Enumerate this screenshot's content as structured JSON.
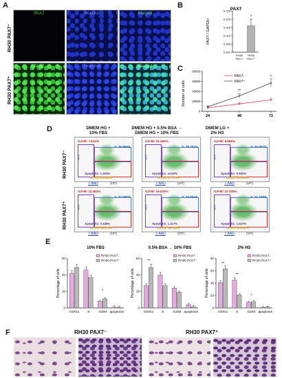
{
  "panels": {
    "a": "A",
    "b": "B",
    "c": "C",
    "d": "D",
    "e": "E",
    "f": "F"
  },
  "panel_a": {
    "col_labels": [
      "PAX7",
      "Hoechst",
      "Merged"
    ],
    "row_labels": [
      "RH30 PAX7⁻",
      "RH30 PAX7⁺"
    ],
    "colors": {
      "pax7": "#39c23a",
      "hoechst": "#1c2bb0",
      "background": "#050510"
    }
  },
  "panel_b": {
    "chart_data": {
      "type": "bar",
      "title": "PAX7",
      "ylabel": "PAX7 / GAPDH",
      "categories": [
        "RH30 PAX7-",
        "RH30 PAX7⁺"
      ],
      "values": [
        0.0,
        0.016
      ],
      "errors": [
        0.0,
        0.004
      ],
      "ylim": [
        0,
        0.025
      ],
      "yticks": [
        "0.000",
        "0.005",
        "0.010",
        "0.015",
        "0.020",
        "0.025"
      ],
      "annotations": [
        "*"
      ]
    }
  },
  "panel_c": {
    "chart_data": {
      "type": "line",
      "ylabel": "Number of cells",
      "x": [
        24,
        48,
        72
      ],
      "xticks": [
        "24",
        "48",
        "72"
      ],
      "yticks": [
        "0",
        "20000",
        "40000",
        "60000",
        "80000"
      ],
      "ylim": [
        0,
        80000
      ],
      "series": [
        {
          "name": "PAX7-",
          "values": [
            7000,
            15000,
            23000
          ],
          "errors": [
            1500,
            2500,
            3000
          ],
          "color": "#e8506a"
        },
        {
          "name": "PAX7⁺",
          "values": [
            9000,
            31000,
            57000
          ],
          "errors": [
            2000,
            4000,
            8000
          ],
          "color": "#555555"
        }
      ],
      "annotations": [
        "**",
        "*"
      ]
    }
  },
  "panel_d": {
    "col_labels": [
      "DMEM HG +\n10% FBS",
      "DMEM HG + 0.5% BSA →\nDMEM HG + 10% FBS",
      "DMEM LG +\n2% HS"
    ],
    "row_labels": [
      "RH30 PAX7⁻",
      "RH30 PAX7⁺"
    ],
    "x_axis": "7-AAD",
    "x_unit": "(10⁵)",
    "y_axis": "APC",
    "plots": [
      {
        "g2m": "G2+M: 7.814%",
        "s": "S: 46.665%",
        "apo": "Apoptotic: 1.163%",
        "g0g1": "G0/G1: 41.883%"
      },
      {
        "g2m": "G2+M: 24.182%",
        "s": "S: 39.700%",
        "apo": "Apoptotic: 4.022%",
        "g0g1": "G0/G1: 27.174%"
      },
      {
        "g2m": "G2+M: 8.966%",
        "s": "S: 45.007%",
        "apo": "Apoptotic: 0.902%",
        "g0g1": "G0/G1: 40.969%"
      },
      {
        "g2m": "G2+M: 11.463%",
        "s": "S: 37.090%",
        "apo": "Apoptotic: 0.436%",
        "g0g1": "G0/G1: 49.879%"
      },
      {
        "g2m": "G2+M: 19.044%",
        "s": "S: 26.954%",
        "apo": "Apoptotic: 1.417%",
        "g0g1": "G0/G1: 49.783%"
      },
      {
        "g2m": "G2+M: 10.335%",
        "s": "S: 21.338%",
        "apo": "Apoptotic: 1.537%",
        "g0g1": "G0/G1: 62.852%"
      }
    ]
  },
  "panel_e": {
    "legend": [
      "RH30 PAX7-",
      "RH30 PAX7⁺"
    ],
    "colors": {
      "neg": "#e6a8e0",
      "pos": "#b8b8b8"
    },
    "chart_data": [
      {
        "type": "bar",
        "title": "10% FBS",
        "ylabel": "Percentage of cells",
        "categories": [
          "G0/G1",
          "S",
          "G2/M",
          "apoptosis"
        ],
        "series": [
          {
            "name": "RH30 PAX7-",
            "values": [
              42,
              46,
              8,
              1
            ]
          },
          {
            "name": "RH30 PAX7⁺",
            "values": [
              49,
              37,
              11,
              0.5
            ]
          }
        ],
        "yticks": [
          "0",
          "20",
          "40",
          "60"
        ],
        "ylim": [
          0,
          60
        ],
        "annotations": [
          "*"
        ]
      },
      {
        "type": "bar",
        "title": "0.5% BSA → 10% FBS",
        "ylabel": "Percentage of cells",
        "categories": [
          "G0/G1",
          "S",
          "G2/M",
          "apoptosis"
        ],
        "series": [
          {
            "name": "RH30 PAX7-",
            "values": [
              27,
              40,
              24,
              4
            ]
          },
          {
            "name": "RH30 PAX7⁺",
            "values": [
              49,
              27,
              19,
              1.5
            ]
          }
        ],
        "yticks": [
          "0",
          "20",
          "40",
          "60"
        ],
        "ylim": [
          0,
          60
        ],
        "annotations": [
          "**"
        ]
      },
      {
        "type": "bar",
        "title": "2% HS",
        "ylabel": "Percentage of cells",
        "categories": [
          "G0/G1",
          "S",
          "G2/M",
          "apoptosis"
        ],
        "series": [
          {
            "name": "RH30 PAX7-",
            "values": [
              41,
              45,
              9,
              0.9
            ]
          },
          {
            "name": "RH30 PAX7⁺",
            "values": [
              63,
              21,
              10,
              1.5
            ]
          }
        ],
        "yticks": [
          "0",
          "20",
          "40",
          "60",
          "80"
        ],
        "ylim": [
          0,
          80
        ],
        "annotations": [
          "**",
          "**",
          "*"
        ]
      }
    ]
  },
  "panel_f": {
    "group_labels": [
      "RH30 PAX7⁻",
      "RH30 PAX7⁺"
    ]
  }
}
